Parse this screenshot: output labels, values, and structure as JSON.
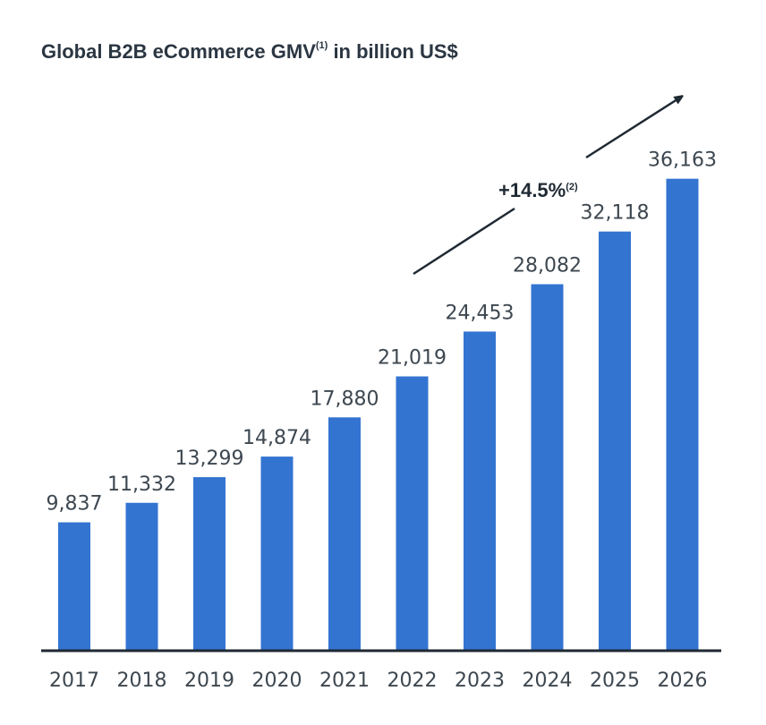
{
  "chart_data": {
    "type": "bar",
    "title": "Global B2B eCommerce GMV",
    "title_superscript": "(1)",
    "title_suffix": " in billion US$",
    "categories": [
      "2017",
      "2018",
      "2019",
      "2020",
      "2021",
      "2022",
      "2023",
      "2024",
      "2025",
      "2026"
    ],
    "values": [
      9837,
      11332,
      13299,
      14874,
      17880,
      21019,
      24453,
      28082,
      32118,
      36163
    ],
    "value_labels": [
      "9,837",
      "11,332",
      "13,299",
      "14,874",
      "17,880",
      "21,019",
      "24,453",
      "28,082",
      "32,118",
      "36,163"
    ],
    "ylim": [
      0,
      43000
    ],
    "xlabel": "",
    "ylabel": "",
    "grid": false,
    "legend": "none",
    "annotation": {
      "text": "+14.5%",
      "superscript": "(2)"
    },
    "bar_color": "#3374d1",
    "axis_color": "#1f2933"
  }
}
